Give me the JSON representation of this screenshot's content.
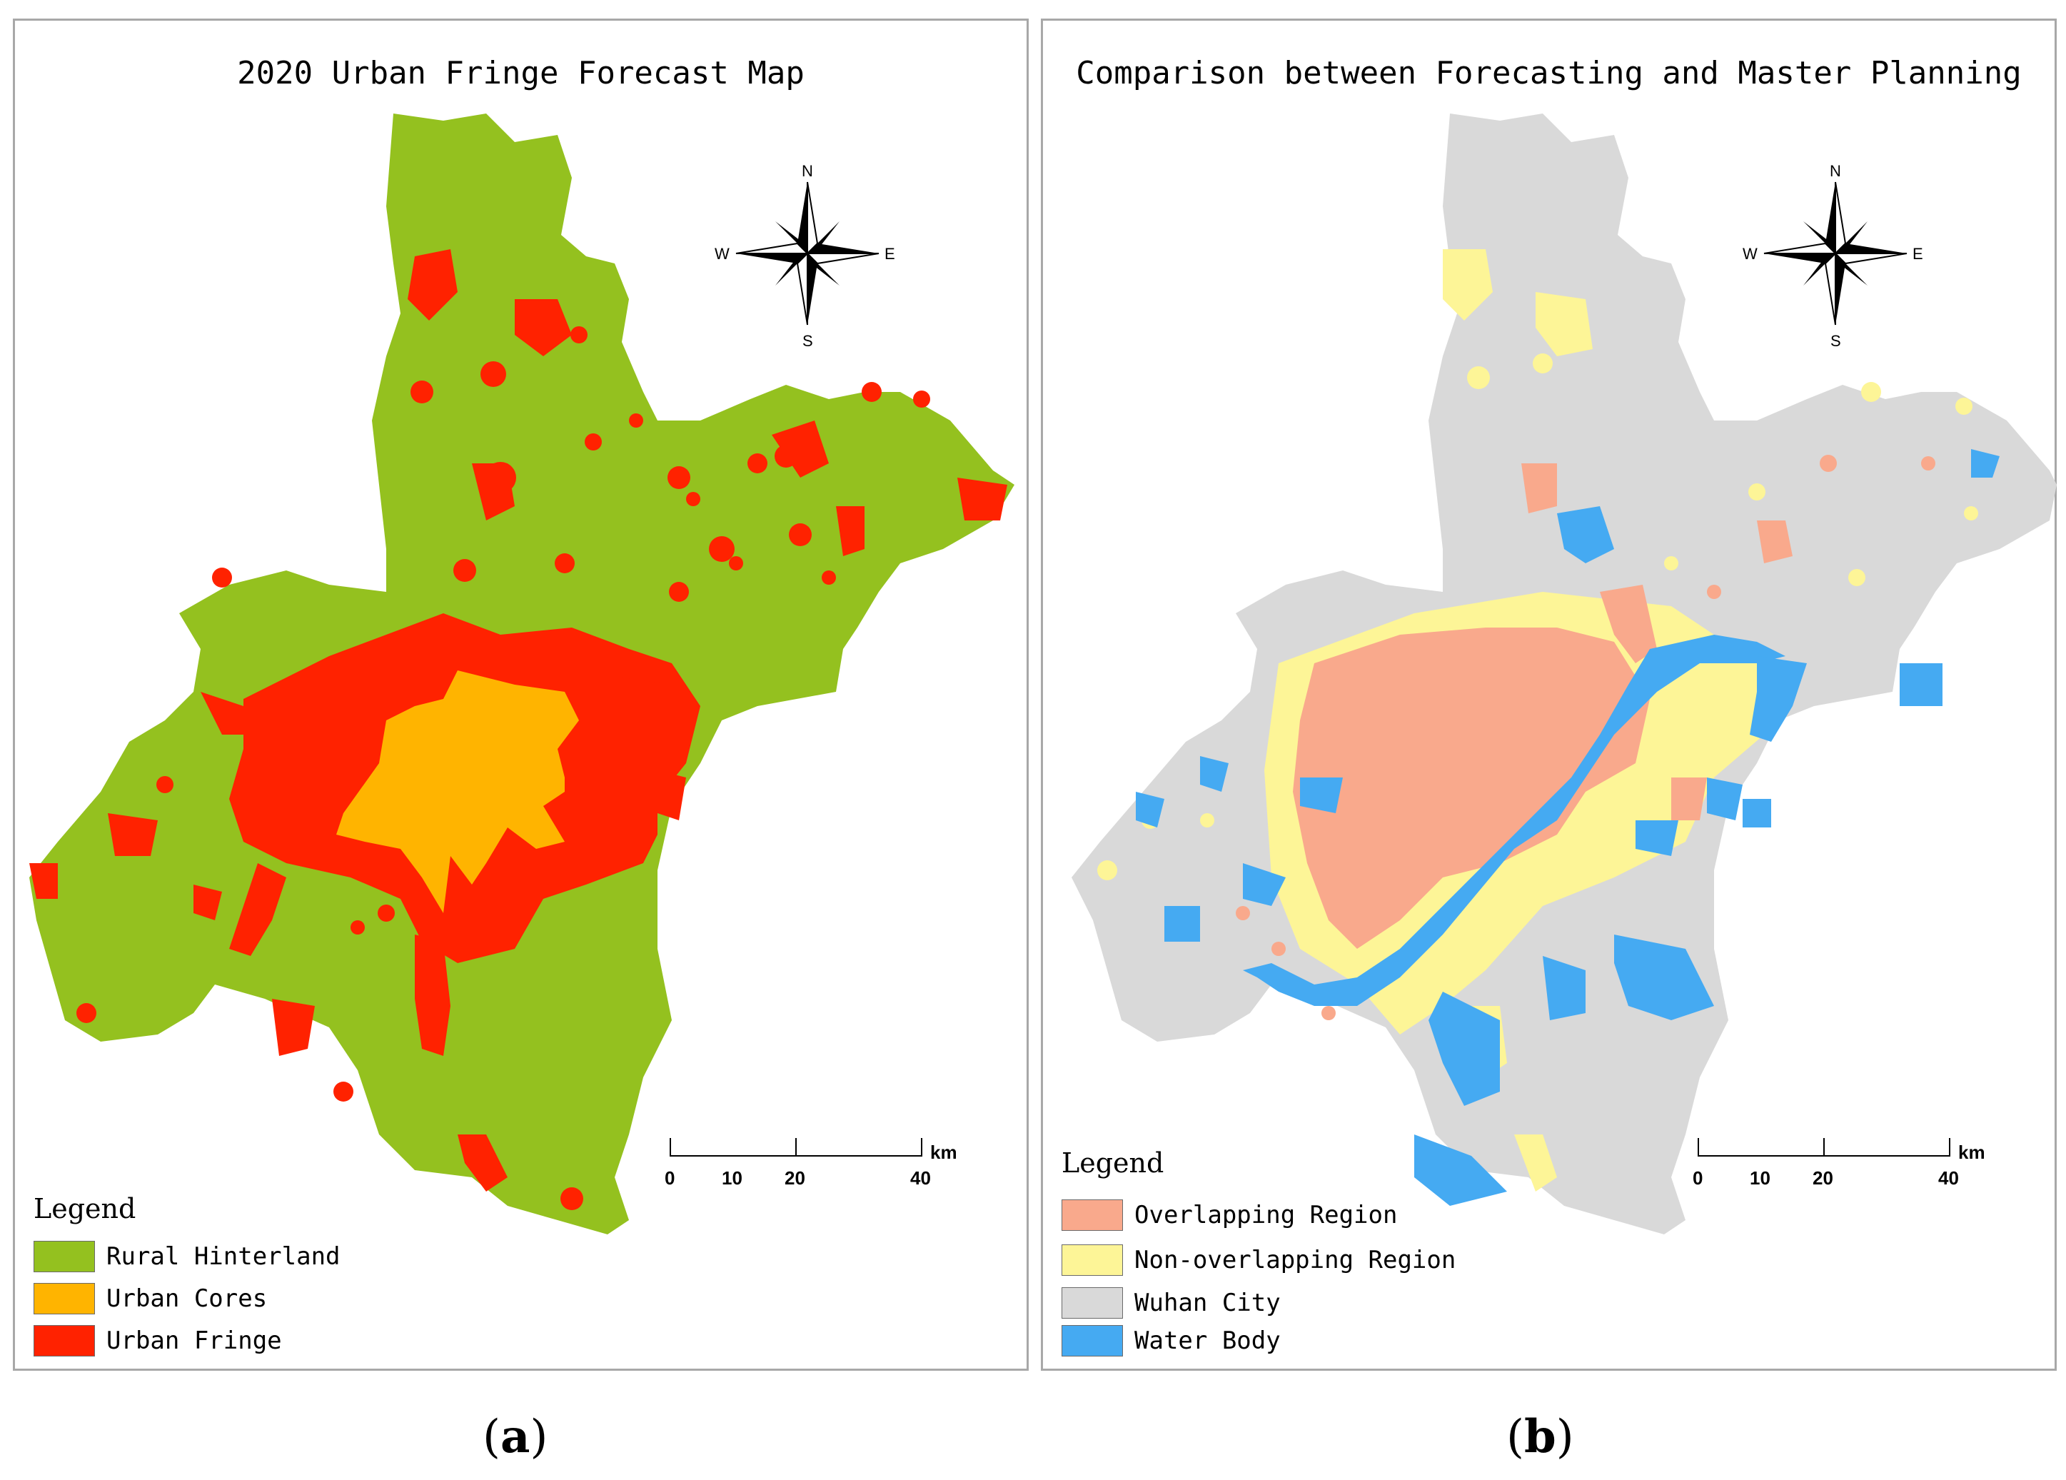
{
  "panel_a": {
    "title": "2020 Urban Fringe Forecast Map",
    "legend_title": "Legend",
    "legend": [
      {
        "label": "Rural Hinterland",
        "color": "#94c11f"
      },
      {
        "label": "Urban Cores",
        "color": "#ffb400"
      },
      {
        "label": "Urban Fringe",
        "color": "#ff2200"
      }
    ],
    "compass": {
      "n": "N",
      "s": "S",
      "e": "E",
      "w": "W"
    },
    "scale_bar": {
      "unit": "km",
      "ticks": [
        "0",
        "10",
        "20",
        "40"
      ]
    },
    "caption": {
      "open": "(",
      "letter": "a",
      "close": ")"
    }
  },
  "panel_b": {
    "title": "Comparison between Forecasting and Master Planning",
    "legend_title": "Legend",
    "legend": [
      {
        "label": "Overlapping Region",
        "color": "#f9a98c"
      },
      {
        "label": "Non-overlapping Region",
        "color": "#fdf597"
      },
      {
        "label": "Wuhan City",
        "color": "#d9d9d9"
      },
      {
        "label": "Water Body",
        "color": "#45aaf2"
      }
    ],
    "compass": {
      "n": "N",
      "s": "S",
      "e": "E",
      "w": "W"
    },
    "scale_bar": {
      "unit": "km",
      "ticks": [
        "0",
        "10",
        "20",
        "40"
      ]
    },
    "caption": {
      "open": "(",
      "letter": "b",
      "close": ")"
    }
  }
}
